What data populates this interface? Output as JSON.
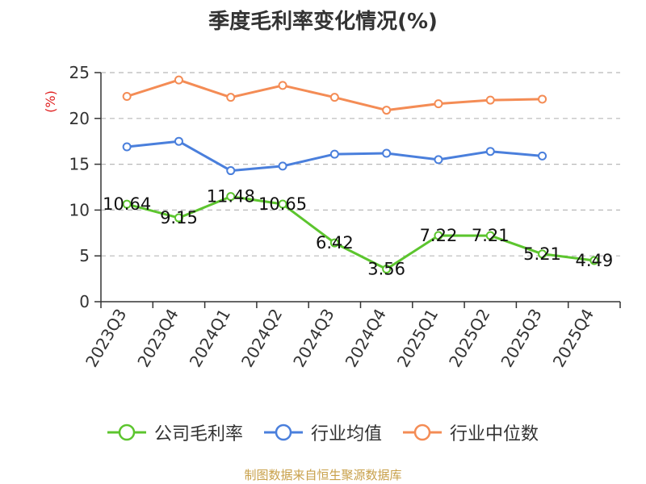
{
  "chart_data": {
    "type": "line",
    "title": "季度毛利率变化情况(%)",
    "ylabel": "(%)",
    "xlabel": "",
    "ylim": [
      0,
      25
    ],
    "yticks": [
      0,
      5,
      10,
      15,
      20,
      25
    ],
    "grid": true,
    "legend_position": "bottom",
    "categories": [
      "2023Q3",
      "2023Q4",
      "2024Q1",
      "2024Q2",
      "2024Q3",
      "2024Q4",
      "2025Q1",
      "2025Q2",
      "2025Q3",
      "2025Q4"
    ],
    "series": [
      {
        "name": "公司毛利率",
        "color": "#5cc52e",
        "values": [
          10.64,
          9.15,
          11.48,
          10.65,
          6.42,
          3.56,
          7.22,
          7.21,
          5.21,
          4.49
        ],
        "data_labels": [
          "10.64",
          "9.15",
          "11.48",
          "10.65",
          "6.42",
          "3.56",
          "7.22",
          "7.21",
          "5.21",
          "4.49"
        ]
      },
      {
        "name": "行业均值",
        "color": "#4a7fdc",
        "values": [
          16.9,
          17.5,
          14.3,
          14.8,
          16.1,
          16.2,
          15.5,
          16.4,
          15.9,
          null
        ]
      },
      {
        "name": "行业中位数",
        "color": "#f48c55",
        "values": [
          22.4,
          24.2,
          22.3,
          23.6,
          22.3,
          20.9,
          21.6,
          22.0,
          22.1,
          null
        ]
      }
    ]
  },
  "footer": {
    "source": "制图数据来自恒生聚源数据库"
  }
}
